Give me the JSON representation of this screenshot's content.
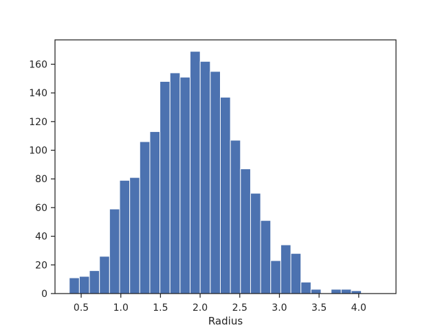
{
  "colors": {
    "bar": "#4c72b0",
    "bar_edge": "#ffffff",
    "axes": "#222222",
    "background": "#ffffff"
  },
  "chart_data": {
    "type": "bar",
    "title": "",
    "xlabel": "Radius",
    "ylabel": "",
    "xlim": [
      0.17,
      4.47
    ],
    "ylim": [
      0,
      177
    ],
    "grid": false,
    "bin_edges": [
      0.35,
      0.477,
      0.604,
      0.731,
      0.858,
      0.985,
      1.112,
      1.239,
      1.366,
      1.493,
      1.62,
      1.747,
      1.874,
      2.001,
      2.128,
      2.255,
      2.382,
      2.509,
      2.636,
      2.763,
      2.89,
      3.017,
      3.144,
      3.271,
      3.398,
      3.525,
      3.652,
      3.779,
      3.906,
      4.033,
      4.16
    ],
    "values": [
      11,
      12,
      16,
      26,
      59,
      79,
      81,
      106,
      113,
      148,
      154,
      151,
      169,
      162,
      155,
      137,
      107,
      87,
      70,
      51,
      23,
      34,
      28,
      8,
      3,
      0,
      3,
      3,
      2,
      0
    ],
    "x_ticks": [
      {
        "value": 0.5,
        "label": "0.5"
      },
      {
        "value": 1.0,
        "label": "1.0"
      },
      {
        "value": 1.5,
        "label": "1.5"
      },
      {
        "value": 2.0,
        "label": "2.0"
      },
      {
        "value": 2.5,
        "label": "2.5"
      },
      {
        "value": 3.0,
        "label": "3.0"
      },
      {
        "value": 3.5,
        "label": "3.5"
      },
      {
        "value": 4.0,
        "label": "4.0"
      }
    ],
    "y_ticks": [
      {
        "value": 0,
        "label": "0"
      },
      {
        "value": 20,
        "label": "20"
      },
      {
        "value": 40,
        "label": "40"
      },
      {
        "value": 60,
        "label": "60"
      },
      {
        "value": 80,
        "label": "80"
      },
      {
        "value": 100,
        "label": "100"
      },
      {
        "value": 120,
        "label": "120"
      },
      {
        "value": 140,
        "label": "140"
      },
      {
        "value": 160,
        "label": "160"
      }
    ]
  }
}
